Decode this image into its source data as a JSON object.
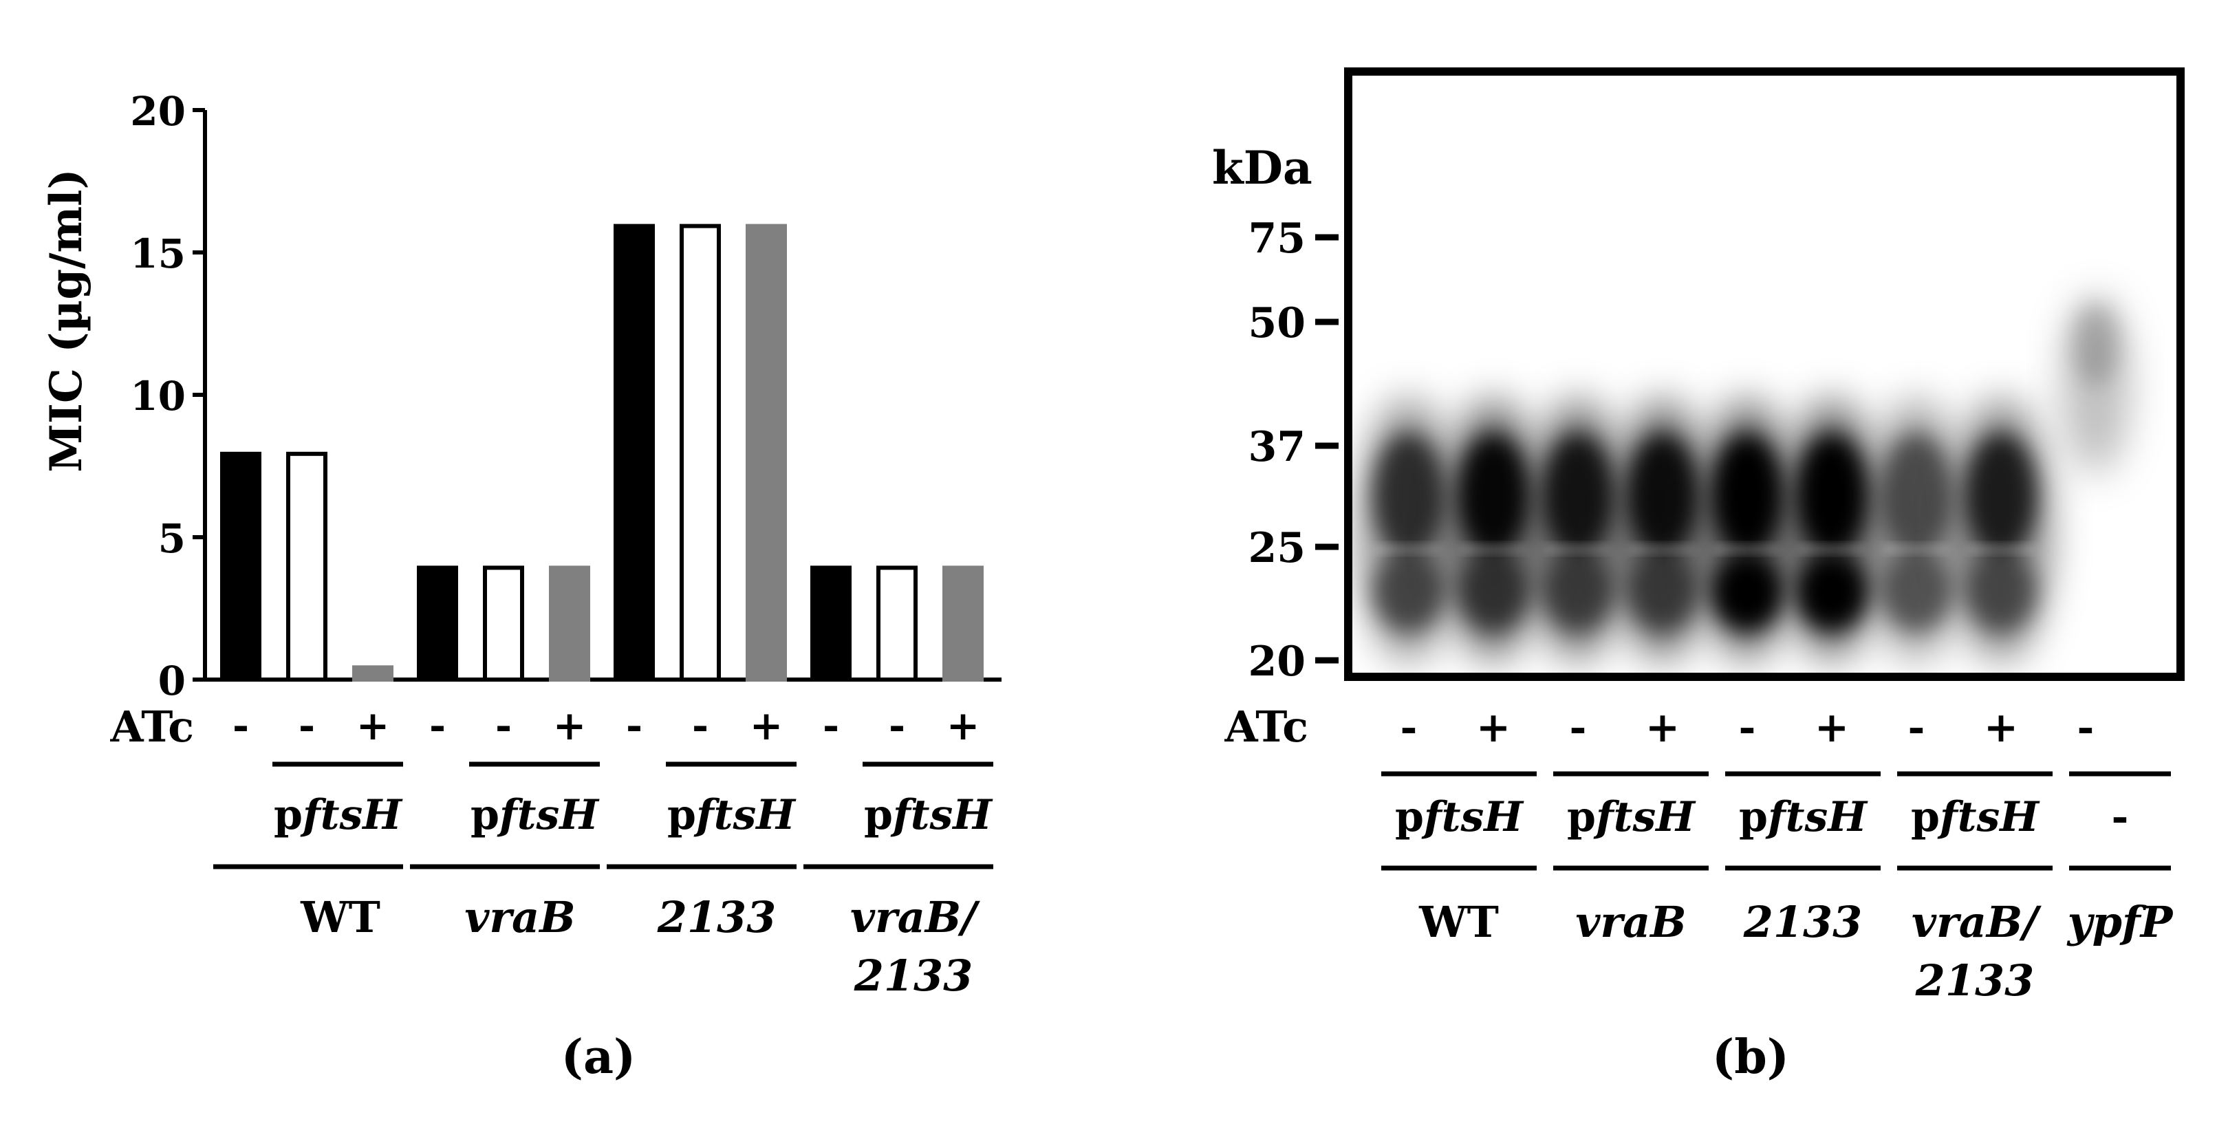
{
  "chart_data": [
    {
      "type": "bar",
      "panel_label": "(a)",
      "ylabel": "MIC (µg/ml)",
      "ylim": [
        0,
        20
      ],
      "yticks": [
        "0",
        "5",
        "10",
        "15",
        "20"
      ],
      "grid": false,
      "series_styles": [
        {
          "fill": "#000000",
          "stroke": "#000000"
        },
        {
          "fill": "#ffffff",
          "stroke": "#000000"
        },
        {
          "fill": "#808080",
          "stroke": "#808080"
        }
      ],
      "groups": [
        {
          "strain": "WT",
          "values": [
            8,
            8,
            0.5
          ]
        },
        {
          "strain": "vraB",
          "values": [
            4,
            4,
            4
          ]
        },
        {
          "strain": "2133",
          "values": [
            16,
            16,
            16
          ]
        },
        {
          "strain": "vraB/",
          "strain_line2": "2133",
          "values": [
            4,
            4,
            4
          ]
        }
      ],
      "atc_label": "ATc",
      "atc_signs": [
        "-",
        "-",
        "+"
      ],
      "plasmid_label": "pftsH",
      "plasmid_prefix": "p",
      "plasmid_gene": "ftsH"
    },
    {
      "type": "western_blot",
      "panel_label": "(b)",
      "unit_label": "kDa",
      "markers": [
        "75",
        "50",
        "37",
        "25",
        "20"
      ],
      "atc_label": "ATc",
      "lanes": [
        {
          "atc": "-",
          "intensity": 0.78,
          "upper": 0.7,
          "lower": 0.55
        },
        {
          "atc": "+",
          "intensity": 1.0,
          "upper": 0.95,
          "lower": 0.6
        },
        {
          "atc": "-",
          "intensity": 0.95,
          "upper": 0.85,
          "lower": 0.55
        },
        {
          "atc": "+",
          "intensity": 0.98,
          "upper": 0.9,
          "lower": 0.55
        },
        {
          "atc": "-",
          "intensity": 1.0,
          "upper": 1.0,
          "lower": 1.0
        },
        {
          "atc": "+",
          "intensity": 1.0,
          "upper": 1.0,
          "lower": 1.0
        },
        {
          "atc": "-",
          "intensity": 0.65,
          "upper": 0.55,
          "lower": 0.5
        },
        {
          "atc": "+",
          "intensity": 0.85,
          "upper": 0.8,
          "lower": 0.5
        },
        {
          "atc": "-",
          "intensity": 0.25,
          "upper": 0.25,
          "lower": 0.05
        }
      ],
      "groups": [
        {
          "strain": "WT",
          "plasmid_prefix": "p",
          "plasmid_gene": "ftsH"
        },
        {
          "strain": "vraB",
          "plasmid_prefix": "p",
          "plasmid_gene": "ftsH"
        },
        {
          "strain": "2133",
          "plasmid_prefix": "p",
          "plasmid_gene": "ftsH"
        },
        {
          "strain": "vraB/",
          "strain_line2": "2133",
          "plasmid_prefix": "p",
          "plasmid_gene": "ftsH"
        },
        {
          "strain": "ypfP",
          "plasmid_prefix": "-",
          "plasmid_gene": ""
        }
      ]
    }
  ]
}
